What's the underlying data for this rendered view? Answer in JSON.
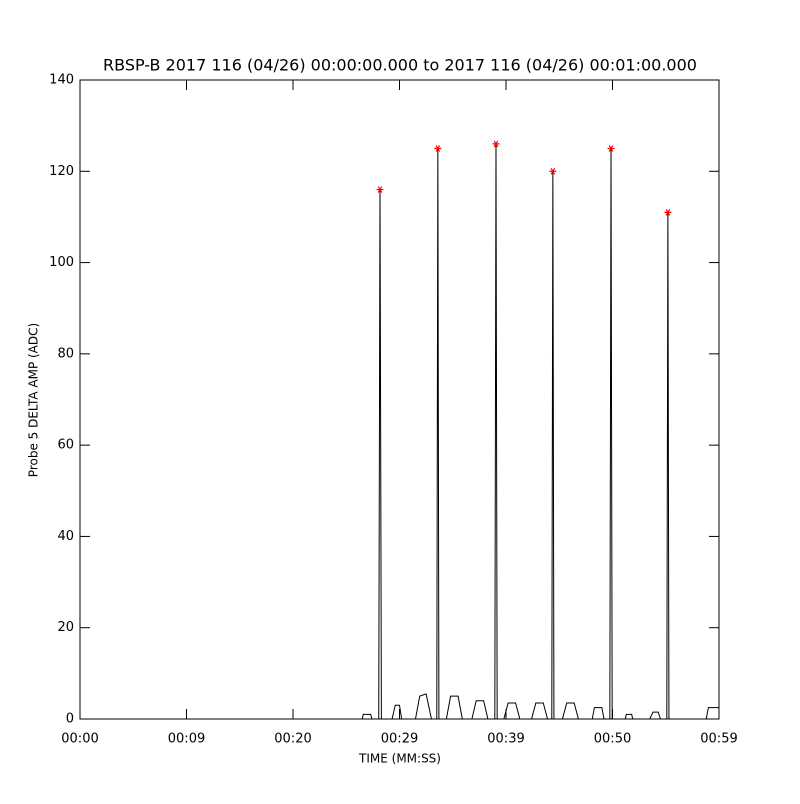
{
  "chart_data": {
    "type": "line",
    "title": "RBSP-B 2017 116 (04/26) 00:00:00.000 to 2017 116 (04/26) 00:01:00.000",
    "xlabel": "TIME (MM:SS)",
    "ylabel": "Probe 5 DELTA AMP (ADC)",
    "xlim": [
      0,
      60
    ],
    "ylim": [
      0,
      140
    ],
    "xticks": [
      {
        "value": 0,
        "label": "00:00"
      },
      {
        "value": 10,
        "label": "00:09"
      },
      {
        "value": 20,
        "label": "00:20"
      },
      {
        "value": 30,
        "label": "00:29"
      },
      {
        "value": 40,
        "label": "00:39"
      },
      {
        "value": 50,
        "label": "00:50"
      },
      {
        "value": 60,
        "label": "00:59"
      }
    ],
    "yticks": [
      0,
      20,
      40,
      60,
      80,
      100,
      120,
      140
    ],
    "series": [
      {
        "color": "#000000",
        "marker": "none",
        "x": [
          0,
          26.5,
          26.6,
          27.3,
          27.4,
          28.05,
          28.17,
          28.3,
          29.3,
          29.6,
          30.0,
          30.2,
          31.5,
          31.9,
          32.5,
          33.0,
          33.5,
          33.6,
          33.7,
          34.4,
          34.8,
          35.5,
          35.9,
          36.8,
          37.2,
          37.9,
          38.3,
          38.95,
          39.06,
          39.17,
          39.8,
          40.2,
          40.9,
          41.3,
          42.4,
          42.8,
          43.5,
          43.9,
          44.3,
          44.4,
          44.5,
          45.3,
          45.7,
          46.4,
          46.8,
          48.1,
          48.3,
          49.0,
          49.2,
          49.75,
          49.86,
          49.97,
          51.2,
          51.3,
          51.8,
          51.9,
          53.5,
          53.8,
          54.3,
          54.5,
          55.1,
          55.2,
          55.3,
          58.8,
          59.0,
          59.8,
          60
        ],
        "values": [
          0,
          0,
          1,
          1,
          0,
          0,
          116,
          0,
          0,
          3,
          3,
          0,
          0,
          5,
          5.5,
          0,
          0,
          125,
          0,
          0,
          5,
          5,
          0,
          0,
          4,
          4,
          0,
          0,
          126,
          0,
          0,
          3.5,
          3.5,
          0,
          0,
          3.5,
          3.5,
          0,
          0,
          120,
          0,
          0,
          3.5,
          3.5,
          0,
          0,
          2.5,
          2.5,
          0,
          0,
          125,
          0,
          0,
          1,
          1,
          0,
          0,
          1.5,
          1.5,
          0,
          0,
          111,
          0,
          0,
          2.5,
          2.5,
          2.5
        ]
      },
      {
        "color": "#ff0000",
        "marker": "star",
        "x": [
          28.17,
          33.6,
          39.06,
          44.4,
          49.86,
          55.2
        ],
        "values": [
          116,
          125,
          126,
          120,
          125,
          111
        ]
      }
    ]
  }
}
